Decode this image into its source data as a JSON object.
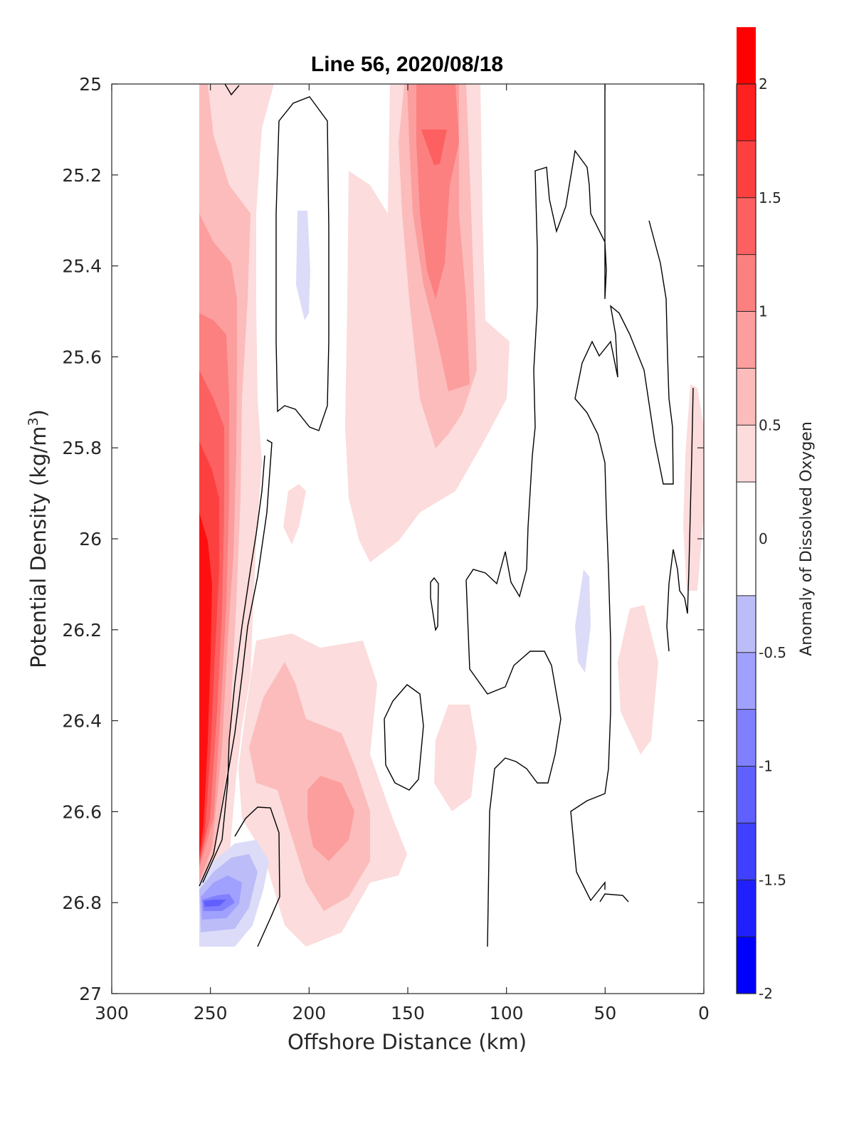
{
  "chart_data": {
    "type": "heatmap",
    "subtype": "filled-contour",
    "title": "Line 56, 2020/08/18",
    "xlabel": "Offshore Distance (km)",
    "ylabel_main": "Potential Density (kg/m",
    "ylabel_sup": "3",
    "ylabel_end": ")",
    "xlim": [
      300,
      0
    ],
    "ylim": [
      25,
      27
    ],
    "x_reversed": true,
    "y_reversed": true,
    "x_ticks": [
      300,
      250,
      200,
      150,
      100,
      50,
      0
    ],
    "y_ticks": [
      25,
      25.2,
      25.4,
      25.6,
      25.8,
      26,
      26.2,
      26.4,
      26.6,
      26.8,
      27
    ],
    "x_tick_labels": [
      "300",
      "250",
      "200",
      "150",
      "100",
      "50",
      "0"
    ],
    "y_tick_labels": [
      "25",
      "25.2",
      "25.4",
      "25.6",
      "25.8",
      "26",
      "26.2",
      "26.4",
      "26.6",
      "26.8",
      "27"
    ],
    "colorbar": {
      "label": "Anomaly of Dissolved Oxygen",
      "range": [
        -2,
        2
      ],
      "ticks": [
        -2,
        -1.5,
        -1,
        -0.5,
        0,
        0.5,
        1,
        1.5,
        2
      ],
      "tick_labels": [
        "-2",
        "-1.5",
        "-1",
        "-0.5",
        "0",
        "0.5",
        "1",
        "1.5",
        "2"
      ],
      "levels": [
        -2,
        -1.75,
        -1.5,
        -1.25,
        -1,
        -0.75,
        -0.5,
        -0.25,
        0.25,
        0.5,
        0.75,
        1,
        1.25,
        1.5,
        1.75,
        2
      ],
      "colors_low_to_high": [
        "#0000ff",
        "#2020ff",
        "#4040ff",
        "#6060ff",
        "#8080ff",
        "#a0a0ff",
        "#bcbcf8",
        "#dcdcf8",
        "#ffffff",
        "#fcdcdc",
        "#fcbcbc",
        "#fc9e9e",
        "#fc8080",
        "#fc6060",
        "#fc4040",
        "#ff2020",
        "#ff0000"
      ]
    },
    "zero_contour_color": "#000000",
    "regions": [
      {
        "name": "nearshore-oxygen-high-core",
        "level": 1.75,
        "x": [
          255,
          250,
          246,
          246,
          250,
          255
        ],
        "y": [
          25.85,
          25.95,
          26.1,
          26.55,
          26.72,
          26.72
        ]
      },
      {
        "name": "inshore-edge-high-band",
        "level": 0.5,
        "x": [
          255,
          215,
          225,
          235,
          235,
          255
        ],
        "y": [
          25.0,
          25.0,
          25.6,
          26.2,
          26.75,
          26.75
        ]
      },
      {
        "name": "midshore-positive-tongue",
        "level": 0.5,
        "x": [
          165,
          120,
          110,
          140,
          160
        ],
        "y": [
          25.0,
          25.0,
          26.0,
          26.5,
          26.2
        ]
      },
      {
        "name": "deep-positive-patch",
        "level": 1.0,
        "x": [
          200,
          175,
          180,
          200
        ],
        "y": [
          26.55,
          26.6,
          26.75,
          26.7
        ]
      },
      {
        "name": "deep-negative-patch",
        "level": -1.25,
        "x": [
          255,
          235,
          230,
          245,
          255
        ],
        "y": [
          26.75,
          26.7,
          26.8,
          26.9,
          26.9
        ]
      },
      {
        "name": "offshore-negative-lens",
        "level": -0.5,
        "x": [
          207,
          200,
          207
        ],
        "y": [
          25.27,
          25.4,
          25.52
        ]
      },
      {
        "name": "nearshore-negative-lens",
        "level": -0.5,
        "x": [
          65,
          58,
          65
        ],
        "y": [
          26.05,
          26.2,
          26.3
        ]
      }
    ]
  }
}
